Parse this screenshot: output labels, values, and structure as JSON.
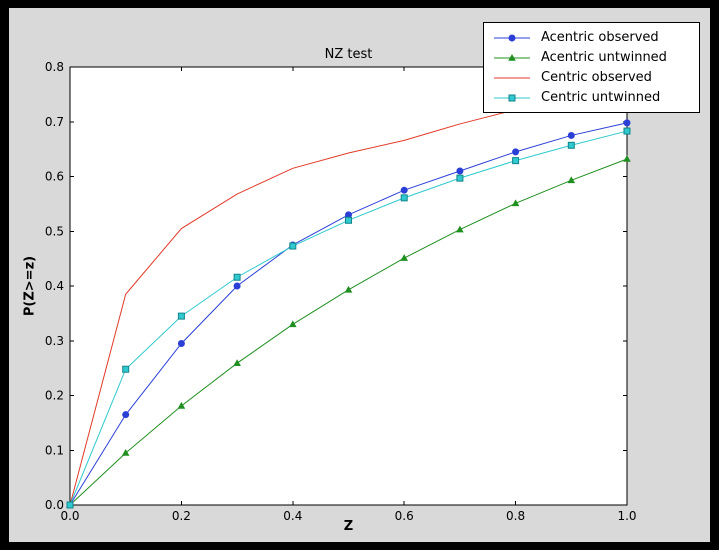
{
  "figure": {
    "background": "#d9d9d9",
    "frame": "#000000",
    "plot_background": "#ffffff",
    "axis_color": "#000000"
  },
  "chart_data": {
    "type": "line",
    "title": "NZ test",
    "xlabel": "Z",
    "ylabel": "P(Z>=z)",
    "xlim": [
      0.0,
      1.0
    ],
    "ylim": [
      0.0,
      0.8
    ],
    "xticks": [
      0.0,
      0.2,
      0.4,
      0.6,
      0.8,
      1.0
    ],
    "xtick_labels": [
      "0.0",
      "0.2",
      "0.4",
      "0.6",
      "0.8",
      "1.0"
    ],
    "yticks": [
      0.0,
      0.1,
      0.2,
      0.3,
      0.4,
      0.5,
      0.6,
      0.7,
      0.8
    ],
    "ytick_labels": [
      "0.0",
      "0.1",
      "0.2",
      "0.3",
      "0.4",
      "0.5",
      "0.6",
      "0.7",
      "0.8"
    ],
    "grid": false,
    "legend": {
      "position": "upper right",
      "background": "#ffffff",
      "border": "#000000",
      "entries": [
        "Acentric observed",
        "Acentric untwinned",
        "Centric observed",
        "Centric untwinned"
      ]
    },
    "x": [
      0.0,
      0.1,
      0.2,
      0.3,
      0.4,
      0.5,
      0.6,
      0.7,
      0.8,
      0.9,
      1.0
    ],
    "series": [
      {
        "name": "Acentric observed",
        "color": "#2b3fd6",
        "marker": "circle",
        "values": [
          0.0,
          0.165,
          0.295,
          0.4,
          0.475,
          0.53,
          0.575,
          0.61,
          0.645,
          0.675,
          0.698
        ]
      },
      {
        "name": "Acentric untwinned",
        "color": "#1f8f1f",
        "marker": "triangle",
        "values": [
          0.0,
          0.095,
          0.181,
          0.259,
          0.33,
          0.393,
          0.451,
          0.503,
          0.551,
          0.593,
          0.632
        ]
      },
      {
        "name": "Centric observed",
        "color": "#e23a28",
        "marker": "none",
        "values": [
          0.0,
          0.385,
          0.505,
          0.568,
          0.615,
          0.643,
          0.666,
          0.696,
          0.722,
          0.747,
          0.768
        ]
      },
      {
        "name": "Centric untwinned",
        "color": "#2fc9cf",
        "marker": "square",
        "marker_edge": "#12858c",
        "values": [
          0.0,
          0.248,
          0.345,
          0.416,
          0.473,
          0.52,
          0.561,
          0.597,
          0.629,
          0.657,
          0.683
        ]
      }
    ]
  }
}
